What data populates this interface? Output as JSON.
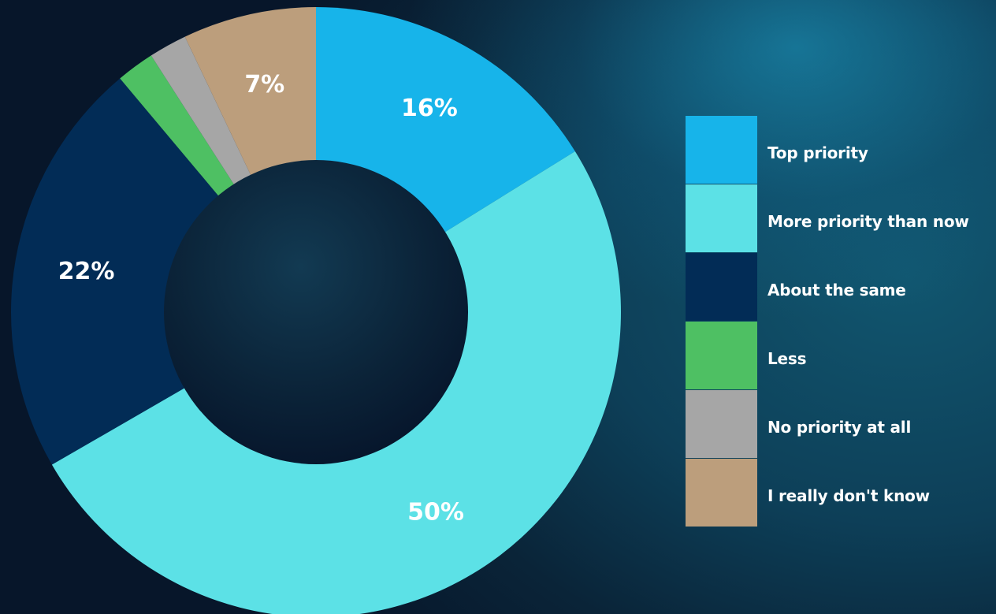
{
  "chart_data": {
    "type": "pie",
    "title": "",
    "donut": true,
    "legend_position": "right",
    "slices": [
      {
        "name": "Top priority",
        "value": 16,
        "label": "16%",
        "color": "#17b4ea"
      },
      {
        "name": "More priority than now",
        "value": 50,
        "label": "50%",
        "color": "#5ce1e6"
      },
      {
        "name": "About the same",
        "value": 22,
        "label": "22%",
        "color": "#022c56"
      },
      {
        "name": "Less",
        "value": 2,
        "label": "",
        "color": "#4ec063"
      },
      {
        "name": "No priority at all",
        "value": 2,
        "label": "",
        "color": "#a6a6a6"
      },
      {
        "name": "I really don't know",
        "value": 7,
        "label": "7%",
        "color": "#bc9e7c"
      }
    ]
  },
  "legend": {
    "items": [
      {
        "label": "Top priority",
        "color": "#17b4ea"
      },
      {
        "label": "More priority than now",
        "color": "#5ce1e6"
      },
      {
        "label": "About the same",
        "color": "#022c56"
      },
      {
        "label": "Less",
        "color": "#4ec063"
      },
      {
        "label": "No priority at all",
        "color": "#a6a6a6"
      },
      {
        "label": "I really don't know",
        "color": "#bc9e7c"
      }
    ]
  }
}
